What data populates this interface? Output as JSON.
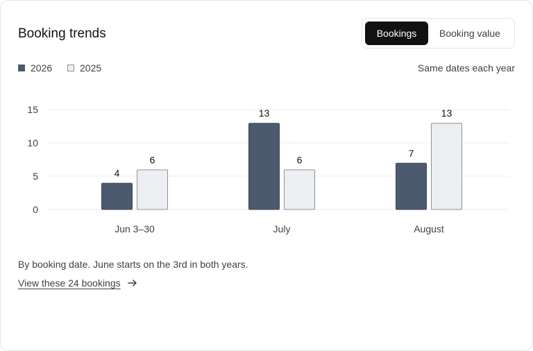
{
  "card": {
    "title": "Booking trends",
    "toggle": {
      "options": [
        "Bookings",
        "Booking value"
      ],
      "selected": "Bookings"
    },
    "note": "Same dates each year",
    "footnote": "By booking date. June starts on the 3rd in both years.",
    "link_label": "View these 24 bookings"
  },
  "colors": {
    "series_2026": "#4b5a6f",
    "series_2025": "#eceef2",
    "series_2025_border": "#8b919c",
    "grid": "#ececef",
    "text_muted": "#3f3f46"
  },
  "chart_data": {
    "type": "bar",
    "categories": [
      "Jun 3–30",
      "July",
      "August"
    ],
    "series": [
      {
        "name": "2026",
        "values": [
          4,
          13,
          7
        ]
      },
      {
        "name": "2025",
        "values": [
          6,
          6,
          13
        ]
      }
    ],
    "yticks": [
      0,
      5,
      10,
      15
    ],
    "ylim": [
      0,
      15
    ],
    "grid": true,
    "legend": "top-left",
    "data_labels": true
  }
}
